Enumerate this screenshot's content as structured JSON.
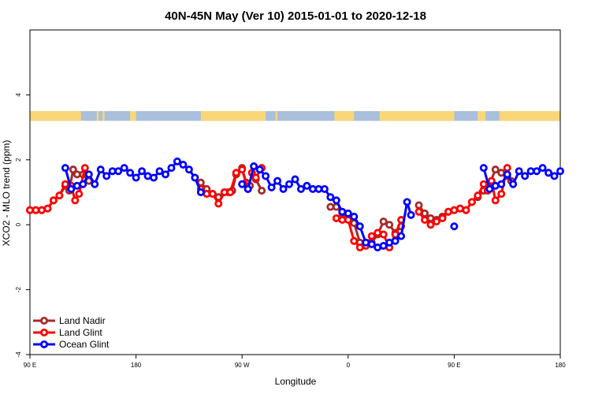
{
  "chart_data": {
    "type": "line",
    "title": "40N-45N May (Ver 10)   2015-01-01 to 2020-12-18",
    "xlabel": "Longitude",
    "ylabel": "XCO2 - MLO trend (ppm)",
    "xlim": [
      -90,
      180
    ],
    "ylim": [
      -4,
      6
    ],
    "x_ticks": [
      {
        "value": -90,
        "label": "90 E"
      },
      {
        "value": -36,
        "label": "180"
      },
      {
        "value": 18,
        "label": "90 W"
      },
      {
        "value": 72,
        "label": "0"
      },
      {
        "value": 126,
        "label": "90 E"
      },
      {
        "value": 180,
        "label": "180"
      }
    ],
    "y_ticks": [
      -4,
      -2,
      0,
      2,
      4
    ],
    "legend_position": "bottom-left",
    "land_ocean_strip": {
      "y_range": [
        3.2,
        3.5
      ],
      "ocean_color": "#a9bfdc",
      "land_color": "#f9d778",
      "land_segments": [
        [
          -90,
          -64
        ],
        [
          -56,
          -55
        ],
        [
          -53,
          -52
        ],
        [
          -39,
          -36
        ],
        [
          -3,
          30
        ],
        [
          35,
          36
        ],
        [
          65,
          75
        ],
        [
          88,
          126
        ],
        [
          138,
          142
        ],
        [
          149,
          180
        ]
      ]
    },
    "series": [
      {
        "name": "Land Nadir",
        "color": "#a52a2a",
        "segments": [
          [
            [
              -90,
              0.45
            ],
            [
              -87,
              0.45
            ],
            [
              -84,
              0.45
            ],
            [
              -81,
              0.5
            ],
            [
              -78,
              0.75
            ],
            [
              -75,
              0.9
            ],
            [
              -72,
              1.2
            ],
            [
              -70,
              1.05
            ],
            [
              -68,
              1.7
            ],
            [
              -66,
              1.55
            ],
            [
              -63,
              1.55
            ],
            [
              -60,
              1.35
            ]
          ],
          [
            [
              -3,
              1.3
            ],
            [
              0,
              1.1
            ],
            [
              3,
              0.95
            ],
            [
              6,
              0.85
            ],
            [
              9,
              1.0
            ],
            [
              11,
              1.0
            ],
            [
              13,
              1.05
            ],
            [
              15,
              1.55
            ],
            [
              18,
              1.75
            ],
            [
              20,
              1.3
            ],
            [
              22,
              1.2
            ]
          ],
          [
            [
              25,
              1.4
            ],
            [
              28,
              1.05
            ]
          ],
          [
            [
              63,
              0.55
            ],
            [
              66,
              0.55
            ],
            [
              69,
              0.35
            ],
            [
              72,
              0.3
            ],
            [
              75,
              0.05
            ],
            [
              78,
              -0.55
            ],
            [
              81,
              -0.55
            ],
            [
              84,
              -0.55
            ],
            [
              87,
              -0.3
            ],
            [
              90,
              0.1
            ],
            [
              93,
              0.0
            ],
            [
              96,
              -0.25
            ],
            [
              99,
              -0.05
            ]
          ],
          [
            [
              108,
              0.6
            ],
            [
              111,
              0.35
            ],
            [
              114,
              0.2
            ],
            [
              117,
              0.15
            ],
            [
              120,
              0.25
            ],
            [
              123,
              0.4
            ],
            [
              126,
              0.45
            ],
            [
              129,
              0.5
            ],
            [
              132,
              0.45
            ],
            [
              135,
              0.7
            ],
            [
              138,
              0.85
            ],
            [
              141,
              1.05
            ],
            [
              144,
              1.25
            ],
            [
              147,
              1.7
            ],
            [
              150,
              1.6
            ],
            [
              153,
              1.5
            ],
            [
              155,
              1.35
            ]
          ]
        ]
      },
      {
        "name": "Land Glint",
        "color": "#ff0000",
        "segments": [
          [
            [
              -90,
              0.45
            ],
            [
              -87,
              0.45
            ],
            [
              -84,
              0.45
            ],
            [
              -81,
              0.5
            ],
            [
              -78,
              0.75
            ],
            [
              -75,
              0.9
            ],
            [
              -72,
              1.25
            ],
            [
              -69,
              1.2
            ],
            [
              -67,
              0.75
            ],
            [
              -65,
              0.95
            ],
            [
              -62,
              1.75
            ]
          ],
          [
            [
              -3,
              1.1
            ],
            [
              0,
              0.95
            ],
            [
              3,
              0.95
            ],
            [
              6,
              0.65
            ],
            [
              9,
              1.0
            ],
            [
              12,
              1.0
            ],
            [
              15,
              1.6
            ],
            [
              18,
              1.7
            ],
            [
              21,
              1.1
            ]
          ],
          [
            [
              23,
              1.6
            ],
            [
              25,
              1.45
            ],
            [
              28,
              1.75
            ]
          ],
          [
            [
              66,
              0.2
            ],
            [
              69,
              0.15
            ],
            [
              72,
              0.15
            ],
            [
              75,
              -0.5
            ],
            [
              78,
              -0.7
            ],
            [
              81,
              -0.65
            ],
            [
              84,
              -0.35
            ],
            [
              87,
              -0.25
            ],
            [
              90,
              -0.3
            ],
            [
              93,
              -0.7
            ],
            [
              96,
              -0.3
            ],
            [
              99,
              0.15
            ]
          ],
          [
            [
              108,
              0.4
            ],
            [
              111,
              0.15
            ],
            [
              114,
              0.0
            ],
            [
              117,
              0.1
            ],
            [
              120,
              0.2
            ],
            [
              123,
              0.4
            ],
            [
              126,
              0.45
            ],
            [
              129,
              0.5
            ],
            [
              132,
              0.45
            ],
            [
              135,
              0.7
            ],
            [
              138,
              0.9
            ],
            [
              141,
              1.25
            ],
            [
              143,
              1.05
            ],
            [
              145,
              1.35
            ],
            [
              147,
              0.75
            ],
            [
              150,
              0.95
            ],
            [
              153,
              1.75
            ]
          ]
        ]
      },
      {
        "name": "Ocean Glint",
        "color": "#0000ff",
        "segments": [
          [
            [
              -72,
              1.75
            ],
            [
              -69,
              1.1
            ],
            [
              -66,
              1.2
            ],
            [
              -63,
              1.25
            ],
            [
              -60,
              1.55
            ],
            [
              -57,
              1.25
            ],
            [
              -54,
              1.7
            ],
            [
              -51,
              1.5
            ],
            [
              -48,
              1.65
            ],
            [
              -45,
              1.65
            ],
            [
              -42,
              1.75
            ],
            [
              -39,
              1.6
            ],
            [
              -36,
              1.45
            ],
            [
              -33,
              1.65
            ],
            [
              -30,
              1.5
            ],
            [
              -27,
              1.45
            ],
            [
              -24,
              1.65
            ],
            [
              -21,
              1.55
            ],
            [
              -18,
              1.75
            ],
            [
              -15,
              1.95
            ],
            [
              -12,
              1.85
            ],
            [
              -9,
              1.7
            ],
            [
              -6,
              1.45
            ],
            [
              -3,
              1.0
            ]
          ],
          [
            [
              18,
              1.25
            ],
            [
              21,
              1.1
            ],
            [
              24,
              1.8
            ],
            [
              27,
              1.7
            ],
            [
              30,
              1.5
            ],
            [
              33,
              1.15
            ],
            [
              36,
              1.35
            ],
            [
              39,
              1.1
            ],
            [
              42,
              1.25
            ],
            [
              45,
              1.4
            ],
            [
              48,
              1.1
            ],
            [
              51,
              1.2
            ],
            [
              54,
              1.1
            ],
            [
              57,
              1.1
            ],
            [
              60,
              1.1
            ],
            [
              63,
              0.85
            ],
            [
              66,
              0.75
            ],
            [
              69,
              0.4
            ],
            [
              72,
              0.35
            ],
            [
              75,
              0.25
            ],
            [
              78,
              -0.05
            ],
            [
              81,
              -0.55
            ],
            [
              84,
              -0.6
            ],
            [
              87,
              -0.7
            ],
            [
              90,
              -0.65
            ],
            [
              93,
              -0.55
            ],
            [
              96,
              -0.5
            ],
            [
              99,
              -0.35
            ],
            [
              102,
              0.7
            ],
            [
              104,
              0.3
            ]
          ],
          [
            [
              126,
              -0.05
            ]
          ],
          [
            [
              141,
              1.75
            ],
            [
              144,
              1.1
            ],
            [
              147,
              1.2
            ],
            [
              150,
              1.25
            ],
            [
              153,
              1.55
            ],
            [
              156,
              1.25
            ],
            [
              159,
              1.65
            ],
            [
              162,
              1.5
            ],
            [
              165,
              1.65
            ],
            [
              168,
              1.65
            ],
            [
              171,
              1.75
            ],
            [
              174,
              1.6
            ],
            [
              177,
              1.5
            ],
            [
              180,
              1.65
            ]
          ]
        ]
      }
    ]
  }
}
